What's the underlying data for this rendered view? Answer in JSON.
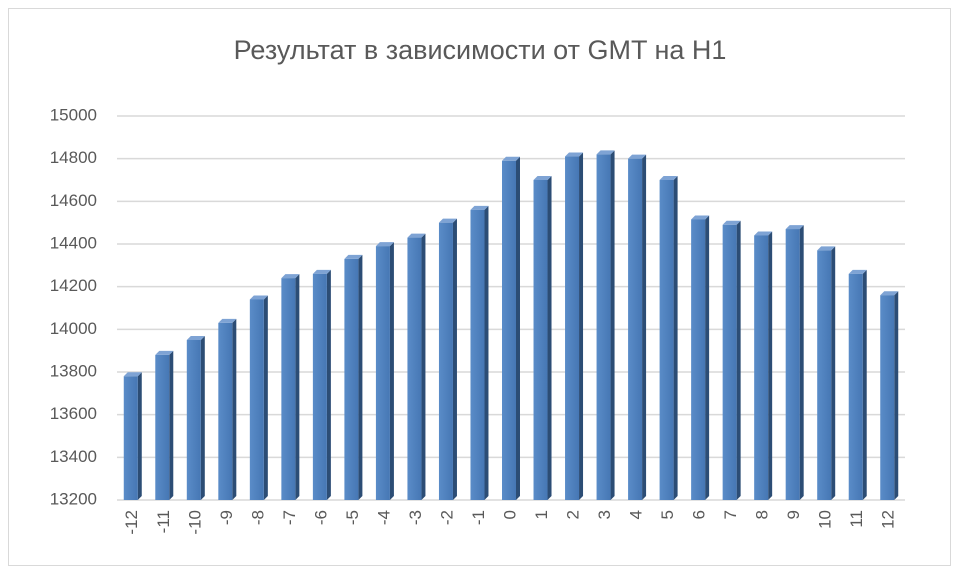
{
  "chart_data": {
    "type": "bar",
    "title": "Результат в зависимости от GMT на H1",
    "categories": [
      "-12",
      "-11",
      "-10",
      "-9",
      "-8",
      "-7",
      "-6",
      "-5",
      "-4",
      "-3",
      "-2",
      "-1",
      "0",
      "1",
      "2",
      "3",
      "4",
      "5",
      "6",
      "7",
      "8",
      "9",
      "10",
      "11",
      "12"
    ],
    "values": [
      13780,
      13880,
      13950,
      14030,
      14140,
      14240,
      14260,
      14330,
      14390,
      14430,
      14500,
      14560,
      14790,
      14700,
      14810,
      14820,
      14800,
      14700,
      14515,
      14490,
      14440,
      14470,
      14370,
      14260,
      14160
    ],
    "color": "#4f81bd",
    "ylim": [
      13200,
      15000
    ],
    "yticks": [
      13200,
      13400,
      13600,
      13800,
      14000,
      14200,
      14400,
      14600,
      14800,
      15000
    ],
    "grid": true
  }
}
